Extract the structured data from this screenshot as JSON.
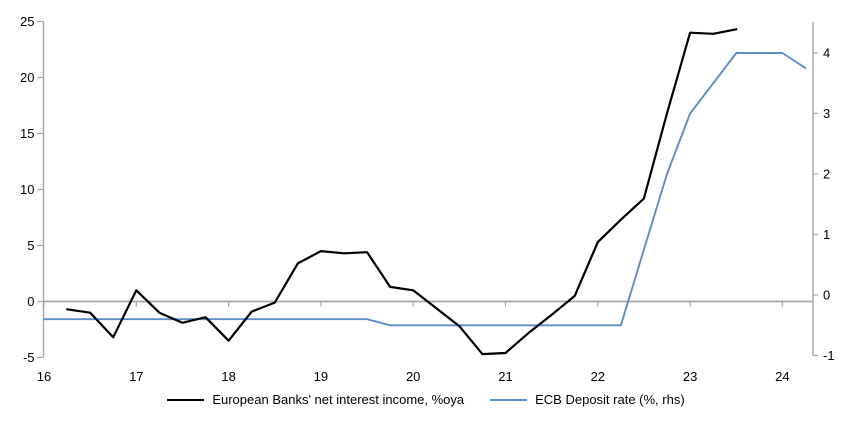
{
  "chart_data": {
    "type": "line",
    "title": "",
    "legend_position": "bottom-center",
    "grid": "zero-line-only",
    "colors": {
      "axis": "#A6A6A6",
      "zero_line": "#A6A6A6",
      "text": "#000000"
    },
    "x_axis": {
      "min": 16,
      "max": 24.4,
      "ticks": [
        16,
        17,
        18,
        19,
        20,
        21,
        22,
        23,
        24
      ]
    },
    "left_axis": {
      "min": -5,
      "max": 25,
      "ticks": [
        25,
        20,
        15,
        10,
        5,
        0,
        -5
      ]
    },
    "right_axis": {
      "min": -1,
      "max": 4.5,
      "ticks": [
        4,
        3,
        2,
        1,
        0,
        -1
      ]
    },
    "series": [
      {
        "name": "European Banks' net interest income, %oya",
        "axis": "left",
        "color": "#000000",
        "width": 2.2,
        "x": [
          16.25,
          16.5,
          16.75,
          17,
          17.25,
          17.5,
          17.75,
          18,
          18.25,
          18.5,
          18.75,
          19,
          19.25,
          19.5,
          19.75,
          20,
          20.25,
          20.5,
          20.75,
          21,
          21.25,
          21.5,
          21.75,
          22,
          22.25,
          22.5,
          22.75,
          23,
          23.25,
          23.5
        ],
        "values": [
          -0.7,
          -1.0,
          -3.2,
          1.0,
          -1.0,
          -1.9,
          -1.4,
          -3.5,
          -0.9,
          -0.1,
          3.4,
          4.5,
          4.3,
          4.4,
          1.3,
          1.0,
          -0.6,
          -2.2,
          -4.7,
          -4.6,
          -2.8,
          -1.2,
          0.5,
          5.3,
          7.3,
          9.2,
          16.8,
          24.0,
          23.9,
          24.3
        ]
      },
      {
        "name": "ECB Deposit rate (%, rhs)",
        "axis": "right",
        "color": "#5B8EC6",
        "width": 1.9,
        "x": [
          16,
          16.25,
          16.5,
          16.75,
          17,
          17.25,
          17.5,
          17.75,
          18,
          18.25,
          18.5,
          18.75,
          19,
          19.25,
          19.5,
          19.75,
          20,
          20.25,
          20.5,
          20.75,
          21,
          21.25,
          21.5,
          21.75,
          22,
          22.25,
          22.5,
          22.75,
          23,
          23.25,
          23.5,
          23.75,
          24,
          24.25
        ],
        "values": [
          -0.4,
          -0.4,
          -0.4,
          -0.4,
          -0.4,
          -0.4,
          -0.4,
          -0.4,
          -0.4,
          -0.4,
          -0.4,
          -0.4,
          -0.4,
          -0.4,
          -0.4,
          -0.5,
          -0.5,
          -0.5,
          -0.5,
          -0.5,
          -0.5,
          -0.5,
          -0.5,
          -0.5,
          -0.5,
          -0.5,
          0.75,
          2.0,
          3.0,
          3.5,
          4.0,
          4.0,
          4.0,
          3.75
        ]
      }
    ]
  }
}
